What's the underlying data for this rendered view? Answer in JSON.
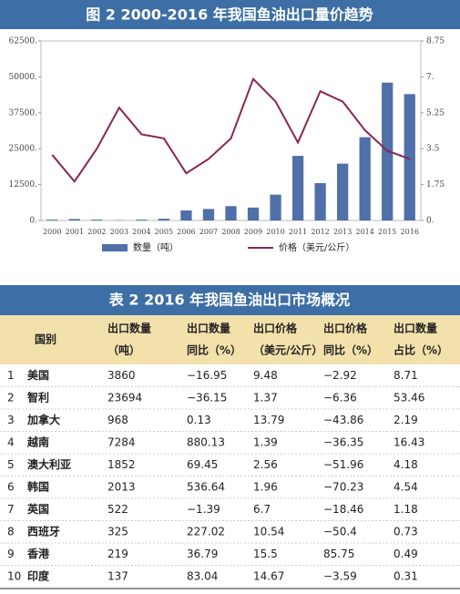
{
  "chart_data": {
    "type": "bar",
    "title": "图 2  2000-2016 年我国鱼油出口量价趋势",
    "categories": [
      "2000",
      "2001",
      "2002",
      "2003",
      "2004",
      "2005",
      "2006",
      "2007",
      "2008",
      "2009",
      "2010",
      "2011",
      "2012",
      "2013",
      "2014",
      "2015",
      "2016"
    ],
    "series": [
      {
        "name": "数量（吨）",
        "type": "bar",
        "color": "#4f70a8",
        "values": [
          300,
          500,
          300,
          100,
          300,
          600,
          3500,
          4000,
          5000,
          4500,
          9000,
          22500,
          13000,
          19800,
          29000,
          48000,
          44000
        ]
      },
      {
        "name": "价格（美元/公斤）",
        "type": "line",
        "axis": "y2",
        "color": "#8b2455",
        "values": [
          3.2,
          1.9,
          3.5,
          5.5,
          4.2,
          4.0,
          2.3,
          3.0,
          4.0,
          6.9,
          5.8,
          3.8,
          6.3,
          5.8,
          4.4,
          3.4,
          3.0
        ]
      }
    ],
    "ylim": [
      0,
      62500
    ],
    "yticks": [
      {
        "value": 0,
        "label": "0."
      },
      {
        "value": 12500,
        "label": "12500."
      },
      {
        "value": 25000,
        "label": "25000."
      },
      {
        "value": 37500,
        "label": "37500."
      },
      {
        "value": 50000,
        "label": "50000."
      },
      {
        "value": 62500,
        "label": "62500."
      }
    ],
    "y2lim": [
      0,
      8.75
    ],
    "y2ticks": [
      {
        "value": 0,
        "label": "0."
      },
      1.75,
      3.5,
      5.25,
      {
        "value": 7,
        "label": "7."
      },
      8.75
    ],
    "grid": false
  },
  "table": {
    "title": "表 2  2016 年我国鱼油出口市场概况",
    "header": [
      [
        "国别"
      ],
      [
        "出口数量",
        "（吨）"
      ],
      [
        "出口数量",
        "同比（%）"
      ],
      [
        "出口价格",
        "（美元/公斤）"
      ],
      [
        "出口价格",
        "同比（%）"
      ],
      [
        "出口数量",
        "占比（%）"
      ]
    ],
    "rows": [
      [
        "1",
        "美国",
        "3860",
        "−16.95",
        "9.48",
        "−2.92",
        "8.71"
      ],
      [
        "2",
        "智利",
        "23694",
        "−36.15",
        "1.37",
        "−6.36",
        "53.46"
      ],
      [
        "3",
        "加拿大",
        "968",
        "0.13",
        "13.79",
        "−43.86",
        "2.19"
      ],
      [
        "4",
        "越南",
        "7284",
        "880.13",
        "1.39",
        "−36.35",
        "16.43"
      ],
      [
        "5",
        "澳大利亚",
        "1852",
        "69.45",
        "2.56",
        "−51.96",
        "4.18"
      ],
      [
        "6",
        "韩国",
        "2013",
        "536.64",
        "1.96",
        "−70.23",
        "4.54"
      ],
      [
        "7",
        "英国",
        "522",
        "−1.39",
        "6.7",
        "−18.46",
        "1.18"
      ],
      [
        "8",
        "西班牙",
        "325",
        "227.02",
        "10.54",
        "−50.4",
        "0.73"
      ],
      [
        "9",
        "香港",
        "219",
        "36.79",
        "15.5",
        "85.75",
        "0.49"
      ],
      [
        "10",
        "印度",
        "137",
        "83.04",
        "14.67",
        "−3.59",
        "0.31"
      ]
    ]
  }
}
